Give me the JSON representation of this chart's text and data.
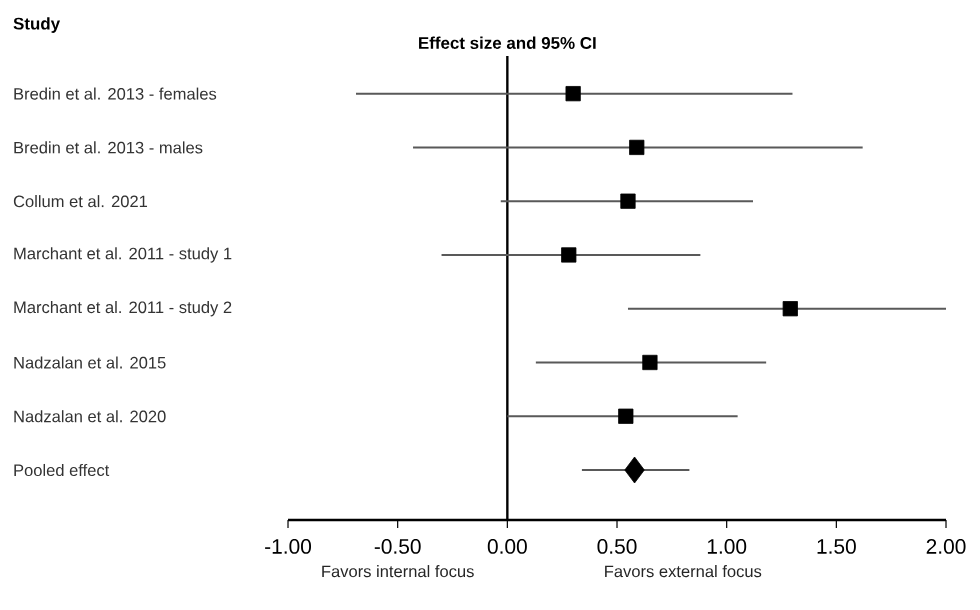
{
  "chart_data": {
    "type": "scatter",
    "title": "Effect size and 95% CI",
    "orientation": "horizontal",
    "categories": [
      "Bredin et al. 2013  - females",
      "Bredin et al. 2013  - males",
      "Collum  et al. 2021",
      "Marchant  et al. 2011  - study 1",
      "Marchant  et al. 2011  - study 2",
      "Nadzalan  et al. 2015",
      "Nadzalan  et al. 2020",
      "Pooled  effect"
    ],
    "series": [
      {
        "color": "#000000",
        "marker": "square",
        "values": [
          0.3,
          0.59,
          0.55,
          0.28,
          1.29,
          0.65,
          0.54,
          null
        ],
        "errors": [
          [
            -0.69,
            1.3
          ],
          [
            -0.43,
            1.62
          ],
          [
            -0.03,
            1.12
          ],
          [
            -0.3,
            0.88
          ],
          [
            0.55,
            2.0
          ],
          [
            0.13,
            1.18
          ],
          [
            0.0,
            1.05
          ],
          null
        ]
      },
      {
        "color": "#000000",
        "marker": "diamond",
        "values": [
          null,
          null,
          null,
          null,
          null,
          null,
          null,
          0.58
        ],
        "errors": [
          null,
          null,
          null,
          null,
          null,
          null,
          null,
          [
            0.34,
            0.83
          ]
        ]
      }
    ],
    "xlim": [
      -1,
      2
    ],
    "xticks": [
      {
        "value": -1,
        "label": "-1.00"
      },
      {
        "value": -0.5,
        "label": "-0.50"
      },
      {
        "value": 0,
        "label": "0.00"
      },
      {
        "value": 0.5,
        "label": "0.50"
      },
      {
        "value": 1,
        "label": "1.00"
      },
      {
        "value": 1.5,
        "label": "1.50"
      },
      {
        "value": 2,
        "label": "2.00"
      }
    ],
    "ref_lines": [
      {
        "axis": "x",
        "value": 0
      }
    ],
    "annotations": [
      "Study",
      "Favors internal focus",
      "Favors external focus"
    ],
    "grid": false
  }
}
